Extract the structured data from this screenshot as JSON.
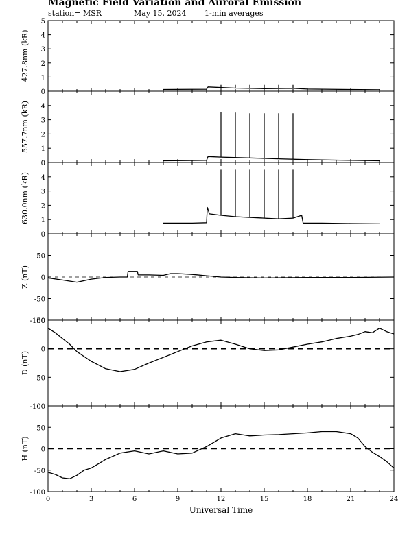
{
  "title": "Magnetic Field Variation and Auroral Emission",
  "station": "station= MSR",
  "date": "May 15, 2024",
  "averaging": "1-min averages",
  "xlabel": "Universal Time",
  "colors": {
    "line": "#000000",
    "background": "#ffffff"
  },
  "chart_data": [
    {
      "type": "line",
      "ylabel": "427.8nm (kR)",
      "ylim": [
        0,
        5
      ],
      "yticks": [
        0,
        1,
        2,
        3,
        4,
        5
      ],
      "xlim": [
        0,
        24
      ],
      "xticks": [
        0,
        3,
        6,
        9,
        12,
        15,
        18,
        21,
        24
      ],
      "series": [
        {
          "x": [
            8,
            11,
            11.1,
            13,
            15,
            17,
            18,
            21,
            23
          ],
          "y": [
            0.12,
            0.14,
            0.3,
            0.22,
            0.18,
            0.2,
            0.15,
            0.12,
            0.1
          ]
        }
      ],
      "spikes": [
        {
          "x": 12,
          "y": 0.45
        },
        {
          "x": 13,
          "y": 0.45
        },
        {
          "x": 14,
          "y": 0.45
        },
        {
          "x": 15,
          "y": 0.45
        },
        {
          "x": 16,
          "y": 0.45
        },
        {
          "x": 17,
          "y": 0.45
        }
      ],
      "baseline": null
    },
    {
      "type": "line",
      "ylabel": "557.7nm (kR)",
      "ylim": [
        0,
        5
      ],
      "yticks": [
        0,
        1,
        2,
        3,
        4
      ],
      "xlim": [
        0,
        24
      ],
      "xticks": [
        0,
        3,
        6,
        9,
        12,
        15,
        18,
        21,
        24
      ],
      "series": [
        {
          "x": [
            8,
            11,
            11.1,
            12,
            14,
            16,
            18,
            21,
            23
          ],
          "y": [
            0.12,
            0.15,
            0.42,
            0.38,
            0.32,
            0.26,
            0.2,
            0.15,
            0.12
          ]
        }
      ],
      "spikes": [
        {
          "x": 12,
          "y": 3.55
        },
        {
          "x": 13,
          "y": 3.5
        },
        {
          "x": 14,
          "y": 3.45
        },
        {
          "x": 15,
          "y": 3.45
        },
        {
          "x": 16,
          "y": 3.45
        },
        {
          "x": 17,
          "y": 3.45
        }
      ],
      "baseline": null
    },
    {
      "type": "line",
      "ylabel": "630.0nm (kR)",
      "ylim": [
        0,
        5
      ],
      "yticks": [
        0,
        1,
        2,
        3,
        4
      ],
      "xlim": [
        0,
        24
      ],
      "xticks": [
        0,
        3,
        6,
        9,
        12,
        15,
        18,
        21,
        24
      ],
      "series": [
        {
          "x": [
            8,
            10,
            11,
            11.05,
            11.2,
            12,
            13,
            14,
            15,
            16,
            17,
            17.6,
            17.7,
            19,
            21,
            23
          ],
          "y": [
            0.75,
            0.75,
            0.78,
            1.85,
            1.4,
            1.3,
            1.2,
            1.15,
            1.1,
            1.05,
            1.1,
            1.3,
            0.75,
            0.75,
            0.72,
            0.7
          ]
        }
      ],
      "spikes": [
        {
          "x": 12,
          "y": 4.5
        },
        {
          "x": 13,
          "y": 4.5
        },
        {
          "x": 14,
          "y": 4.5
        },
        {
          "x": 15,
          "y": 4.5
        },
        {
          "x": 16,
          "y": 4.5
        },
        {
          "x": 17,
          "y": 4.5
        }
      ],
      "baseline": null
    },
    {
      "type": "line",
      "ylabel": "Z (nT)",
      "ylim": [
        -100,
        100
      ],
      "yticks": [
        -100,
        -50,
        0,
        50
      ],
      "xlim": [
        0,
        24
      ],
      "xticks": [
        0,
        3,
        6,
        9,
        12,
        15,
        18,
        21,
        24
      ],
      "series": [
        {
          "x": [
            0,
            1,
            2,
            3,
            4,
            5,
            5.5,
            5.55,
            6.2,
            6.25,
            7,
            8,
            8.5,
            9,
            10,
            11,
            12,
            13,
            15,
            18,
            21,
            24
          ],
          "y": [
            -2,
            -7,
            -12,
            -5,
            -1,
            0,
            0,
            13,
            13,
            5,
            5,
            4,
            8,
            8,
            6,
            3,
            0,
            -1,
            -2,
            -1,
            -1,
            0
          ]
        }
      ],
      "spikes": [],
      "baseline": "dashed-thin"
    },
    {
      "type": "line",
      "ylabel": "D (nT)",
      "ylim": [
        -100,
        50
      ],
      "yticks": [
        -100,
        -50,
        0,
        50
      ],
      "xlim": [
        0,
        24
      ],
      "xticks": [
        0,
        3,
        6,
        9,
        12,
        15,
        18,
        21,
        24
      ],
      "series": [
        {
          "x": [
            0,
            0.5,
            1,
            1.5,
            2,
            3,
            4,
            5,
            6,
            7,
            8,
            9,
            10,
            11,
            12,
            13,
            14,
            15,
            16,
            17,
            18,
            19,
            20,
            21,
            21.5,
            22,
            22.5,
            23,
            23.5,
            24
          ],
          "y": [
            36,
            28,
            18,
            8,
            -5,
            -22,
            -35,
            -40,
            -36,
            -25,
            -15,
            -5,
            5,
            12,
            15,
            8,
            0,
            -3,
            -2,
            3,
            8,
            12,
            18,
            22,
            25,
            30,
            28,
            36,
            30,
            26
          ]
        }
      ],
      "spikes": [],
      "baseline": "dashed-thick"
    },
    {
      "type": "line",
      "ylabel": "H (nT)",
      "ylim": [
        -100,
        100
      ],
      "yticks": [
        -100,
        -50,
        0,
        50
      ],
      "xlim": [
        0,
        24
      ],
      "xticks": [
        0,
        3,
        6,
        9,
        12,
        15,
        18,
        21,
        24
      ],
      "xticklabels": [
        "0",
        "3",
        "6",
        "9",
        "12",
        "15",
        "18",
        "21",
        "24"
      ],
      "series": [
        {
          "x": [
            0,
            0.5,
            1,
            1.5,
            2,
            2.5,
            3,
            3.5,
            4,
            5,
            6,
            7,
            8,
            9,
            10,
            11,
            12,
            13,
            14,
            15,
            16,
            17,
            18,
            19,
            20,
            21,
            21.5,
            22,
            22.5,
            23,
            23.5,
            24
          ],
          "y": [
            -55,
            -60,
            -68,
            -70,
            -62,
            -50,
            -45,
            -35,
            -25,
            -10,
            -5,
            -12,
            -5,
            -12,
            -10,
            5,
            25,
            35,
            30,
            32,
            33,
            35,
            37,
            40,
            40,
            35,
            25,
            5,
            -8,
            -18,
            -30,
            -45
          ]
        }
      ],
      "spikes": [],
      "baseline": "dashed-thick"
    }
  ]
}
